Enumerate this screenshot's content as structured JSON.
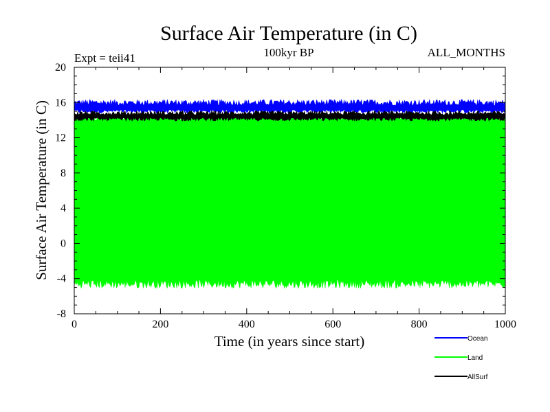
{
  "chart_data": {
    "type": "area",
    "title": "Surface Air Temperature (in C)",
    "subtitle": "100kyr BP",
    "expt_label": "Expt = teii41",
    "months_label": "ALL_MONTHS",
    "xlabel": "Time (in years since start)",
    "ylabel": "Surface Air Temperature (in C)",
    "xlim": [
      0,
      1000
    ],
    "ylim": [
      -8,
      20
    ],
    "x_ticks": [
      0,
      200,
      400,
      600,
      800,
      1000
    ],
    "y_ticks": [
      -8,
      -4,
      0,
      4,
      8,
      12,
      16,
      20
    ],
    "grid": false,
    "legend_position": "bottom-right",
    "series": [
      {
        "name": "Ocean",
        "color": "#0000ff",
        "band_low": 15.0,
        "band_high": 16.0,
        "noise_high": 0.35,
        "noise_low": 0.2
      },
      {
        "name": "Land",
        "color": "#00ff00",
        "band_low": -4.6,
        "band_high": 14.3,
        "noise_high": 0.35,
        "noise_low": 0.5
      },
      {
        "name": "AllSurf",
        "color": "#000000",
        "band_low": 14.1,
        "band_high": 14.8,
        "noise_high": 0.25,
        "noise_low": 0.2
      }
    ]
  }
}
